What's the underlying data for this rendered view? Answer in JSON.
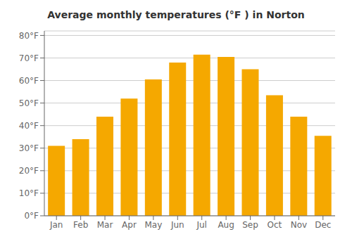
{
  "chart_data": {
    "type": "bar",
    "title": "Average monthly temperatures (°F ) in Norton",
    "categories": [
      "Jan",
      "Feb",
      "Mar",
      "Apr",
      "May",
      "Jun",
      "Jul",
      "Aug",
      "Sep",
      "Oct",
      "Nov",
      "Dec"
    ],
    "values": [
      31,
      34,
      44,
      52,
      60.5,
      68,
      71.5,
      70.5,
      65,
      53.5,
      44,
      35.5
    ],
    "color": "#F5A800",
    "ylim": [
      0,
      82
    ],
    "yticks": [
      {
        "value": 0,
        "label": "0°F"
      },
      {
        "value": 10,
        "label": "10°F"
      },
      {
        "value": 20,
        "label": "20°F"
      },
      {
        "value": 30,
        "label": "30°F"
      },
      {
        "value": 40,
        "label": "40°F"
      },
      {
        "value": 50,
        "label": "50°F"
      },
      {
        "value": 60,
        "label": "60°F"
      },
      {
        "value": 70,
        "label": "70°F"
      },
      {
        "value": 80,
        "label": "80°F"
      }
    ],
    "grid": true
  }
}
